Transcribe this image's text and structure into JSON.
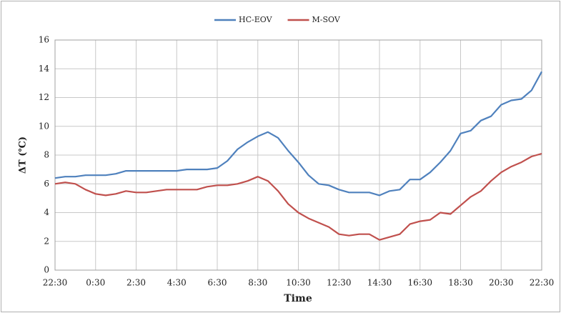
{
  "chart_data": {
    "type": "line",
    "y_label": "ΔT (℃)",
    "x_label": "Time",
    "categories": [
      "22:30",
      null,
      null,
      null,
      "0:30",
      null,
      null,
      null,
      "2:30",
      null,
      null,
      null,
      "4:30",
      null,
      null,
      null,
      "6:30",
      null,
      null,
      null,
      "8:30",
      null,
      null,
      null,
      "10:30",
      null,
      null,
      null,
      "12:30",
      null,
      null,
      null,
      "14:30",
      null,
      null,
      null,
      "16:30",
      null,
      null,
      null,
      "18:30",
      null,
      null,
      null,
      "20:30",
      null,
      null,
      null,
      "22:30"
    ],
    "series": [
      {
        "name": "HC-EOV",
        "color": "#4f81bd",
        "values": [
          6.4,
          6.5,
          6.5,
          6.6,
          6.6,
          6.6,
          6.7,
          6.9,
          6.9,
          6.9,
          6.9,
          6.9,
          6.9,
          7.0,
          7.0,
          7.0,
          7.1,
          7.6,
          8.4,
          8.9,
          9.3,
          9.6,
          9.2,
          8.3,
          7.5,
          6.6,
          6.0,
          5.9,
          5.6,
          5.4,
          5.4,
          5.4,
          5.2,
          5.5,
          5.6,
          6.3,
          6.3,
          6.8,
          7.5,
          8.3,
          9.5,
          9.7,
          10.4,
          10.7,
          11.5,
          11.8,
          11.9,
          12.5,
          13.8
        ]
      },
      {
        "name": "M-SOV",
        "color": "#c0504d",
        "values": [
          6.0,
          6.1,
          6.0,
          5.6,
          5.3,
          5.2,
          5.3,
          5.5,
          5.4,
          5.4,
          5.5,
          5.6,
          5.6,
          5.6,
          5.6,
          5.8,
          5.9,
          5.9,
          6.0,
          6.2,
          6.5,
          6.2,
          5.5,
          4.6,
          4.0,
          3.6,
          3.3,
          3.0,
          2.5,
          2.4,
          2.5,
          2.5,
          2.1,
          2.3,
          2.5,
          3.2,
          3.4,
          3.5,
          4.0,
          3.9,
          4.5,
          5.1,
          5.5,
          6.2,
          6.8,
          7.2,
          7.5,
          7.9,
          8.1
        ]
      }
    ],
    "ylim": [
      0,
      16
    ],
    "yticks": [
      0,
      2,
      4,
      6,
      8,
      10,
      12,
      14,
      16
    ],
    "grid": true,
    "legend": "top"
  }
}
